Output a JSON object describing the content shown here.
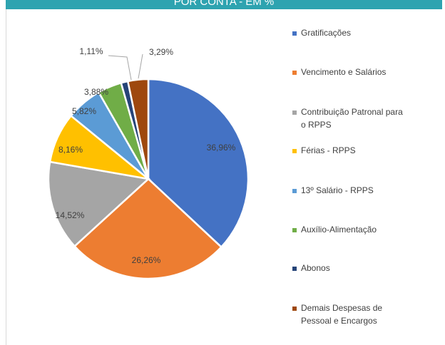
{
  "chart_data": {
    "type": "pie",
    "title": "POR CONTA - EM %",
    "categories": [
      "Gratificações",
      "Vencimento e Salários",
      "Contribuição Patronal para o RPPS",
      "Férias - RPPS",
      "13º Salário - RPPS",
      "Auxílio-Alimentação",
      "Abonos",
      "Demais Despesas de Pessoal e Encargos"
    ],
    "values": [
      36.96,
      26.26,
      14.52,
      8.16,
      5.82,
      3.88,
      1.11,
      3.29
    ],
    "value_labels": [
      "36,96%",
      "26,26%",
      "14,52%",
      "8,16%",
      "5,82%",
      "3,88%",
      "1,11%",
      "3,29%"
    ],
    "colors": [
      "#4472c4",
      "#ed7d31",
      "#a5a5a5",
      "#ffc000",
      "#5b9bd5",
      "#70ad47",
      "#264478",
      "#9e480e"
    ],
    "legend": "right"
  }
}
